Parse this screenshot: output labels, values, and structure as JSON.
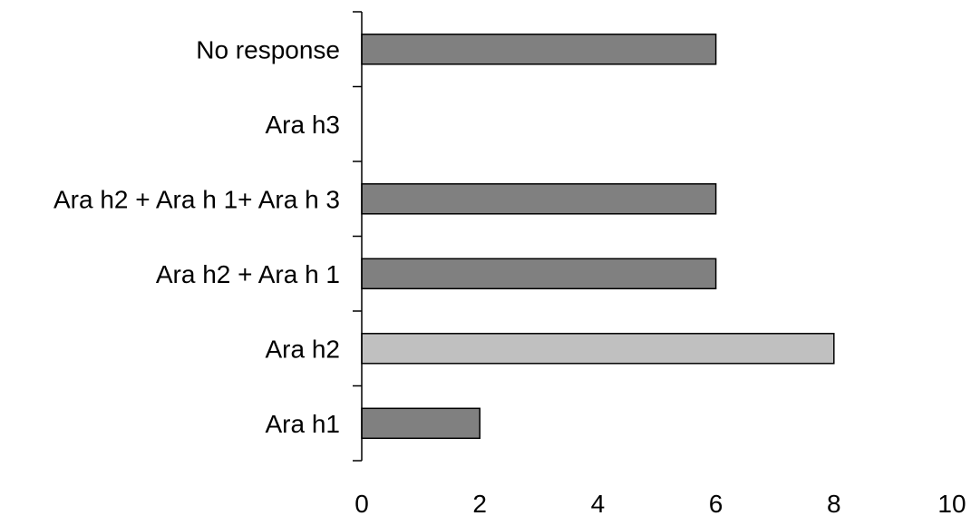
{
  "chart_data": {
    "type": "bar",
    "orientation": "horizontal",
    "title": "",
    "xlabel": "",
    "ylabel": "",
    "categories": [
      "Ara h1",
      "Ara h2",
      "Ara h2 + Ara h 1",
      "Ara h2 + Ara h 1+ Ara h 3",
      "Ara h3",
      "No response"
    ],
    "values": [
      2,
      8,
      6,
      6,
      0,
      6
    ],
    "xlim": [
      0,
      10
    ],
    "xticks": [
      "0",
      "2",
      "4",
      "6",
      "8",
      "10"
    ],
    "grid": false,
    "legend": "none",
    "colors": {
      "default_bar": "#808080",
      "highlight_bar": "#c0c0c0",
      "bar_outline": "#000000",
      "axis": "#000000"
    },
    "highlight_category": "Ara h2"
  }
}
